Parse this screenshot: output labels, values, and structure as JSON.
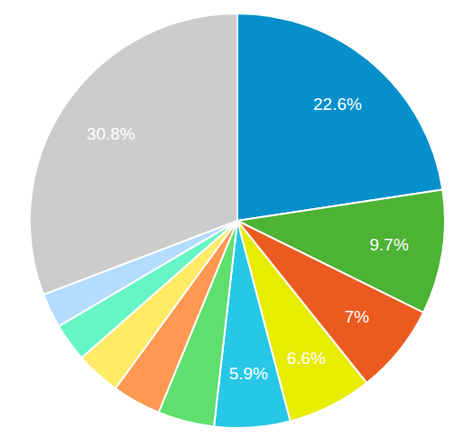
{
  "chart_data": {
    "type": "pie",
    "values": [
      22.6,
      9.7,
      7,
      6.6,
      5.9,
      4.4,
      3.8,
      3.5,
      3.0,
      2.7,
      30.8
    ],
    "value_labels": [
      "22.6%",
      "9.7%",
      "7%",
      "6.6%",
      "5.9%",
      null,
      null,
      null,
      null,
      null,
      "30.8%"
    ],
    "data_labels": true,
    "colors": [
      "#0590cb",
      "#4db335",
      "#eb5b1f",
      "#e8ec00",
      "#27c7e6",
      "#5fe06e",
      "#ff9850",
      "#ffeb66",
      "#66f5c4",
      "#b3dcff",
      "#cccccc"
    ]
  }
}
